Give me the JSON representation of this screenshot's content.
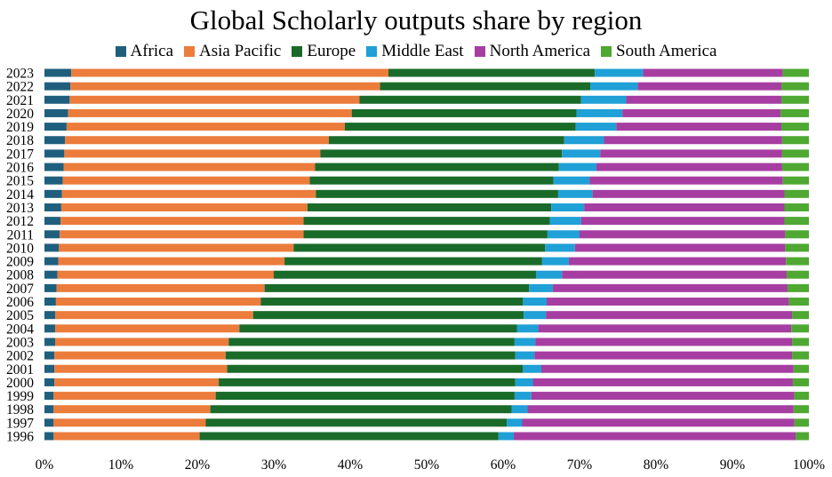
{
  "chart_data": {
    "type": "bar",
    "orientation": "horizontal",
    "stacked": "percent",
    "title": "Global Scholarly outputs share by region",
    "xlabel": "",
    "ylabel": "",
    "xlim": [
      0,
      100
    ],
    "x_ticks": [
      "0%",
      "10%",
      "20%",
      "30%",
      "40%",
      "50%",
      "60%",
      "70%",
      "80%",
      "90%",
      "100%"
    ],
    "legend_position": "top",
    "grid": false,
    "categories": [
      "2023",
      "2022",
      "2021",
      "2020",
      "2019",
      "2018",
      "2017",
      "2016",
      "2015",
      "2014",
      "2013",
      "2012",
      "2011",
      "2010",
      "2009",
      "2008",
      "2007",
      "2006",
      "2005",
      "2004",
      "2003",
      "2002",
      "2001",
      "2000",
      "1999",
      "1998",
      "1997",
      "1996"
    ],
    "series": [
      {
        "name": "Africa",
        "color": "#1f5f7e",
        "values": [
          3.5,
          3.4,
          3.3,
          3.1,
          2.9,
          2.7,
          2.6,
          2.5,
          2.4,
          2.3,
          2.2,
          2.1,
          2.0,
          1.9,
          1.8,
          1.7,
          1.6,
          1.5,
          1.4,
          1.4,
          1.4,
          1.3,
          1.3,
          1.3,
          1.2,
          1.2,
          1.2,
          1.2
        ]
      },
      {
        "name": "Asia Pacific",
        "color": "#ec7c3c",
        "values": [
          41.5,
          40.5,
          37.9,
          37.1,
          36.4,
          34.5,
          33.5,
          32.9,
          32.3,
          33.2,
          32.2,
          31.8,
          31.9,
          30.7,
          29.6,
          28.3,
          27.2,
          26.8,
          25.9,
          24.1,
          22.7,
          22.4,
          22.6,
          21.5,
          21.2,
          20.5,
          19.9,
          19.1
        ]
      },
      {
        "name": "Europe",
        "color": "#1a6b2a",
        "values": [
          27.0,
          27.5,
          29.0,
          29.4,
          30.2,
          30.8,
          31.6,
          31.9,
          31.9,
          31.7,
          31.9,
          32.2,
          31.9,
          32.9,
          33.7,
          34.3,
          34.6,
          34.3,
          35.4,
          36.3,
          37.4,
          37.9,
          38.7,
          38.8,
          39.1,
          39.4,
          39.4,
          39.1
        ]
      },
      {
        "name": "Middle East",
        "color": "#1fa0d6",
        "values": [
          6.3,
          6.2,
          5.9,
          6.0,
          5.3,
          5.2,
          5.0,
          4.9,
          4.7,
          4.5,
          4.3,
          4.1,
          4.2,
          3.9,
          3.5,
          3.4,
          3.1,
          3.1,
          2.9,
          2.8,
          2.7,
          2.5,
          2.4,
          2.3,
          2.2,
          2.1,
          2.0,
          2.0
        ]
      },
      {
        "name": "North America",
        "color": "#a63ea2",
        "values": [
          18.3,
          18.8,
          20.3,
          20.7,
          21.6,
          23.3,
          23.8,
          24.3,
          25.3,
          25.1,
          26.2,
          26.6,
          26.9,
          27.5,
          28.4,
          29.4,
          30.7,
          31.7,
          32.2,
          33.1,
          33.6,
          33.7,
          33.0,
          34.0,
          34.4,
          34.8,
          35.6,
          36.9
        ]
      },
      {
        "name": "South America",
        "color": "#4ea832",
        "values": [
          3.4,
          3.6,
          3.6,
          3.7,
          3.6,
          3.5,
          3.5,
          3.5,
          3.4,
          3.2,
          3.2,
          3.2,
          3.1,
          3.1,
          3.0,
          2.9,
          2.8,
          2.6,
          2.2,
          2.3,
          2.2,
          2.2,
          2.0,
          2.1,
          1.9,
          2.0,
          1.9,
          1.7
        ]
      }
    ]
  }
}
